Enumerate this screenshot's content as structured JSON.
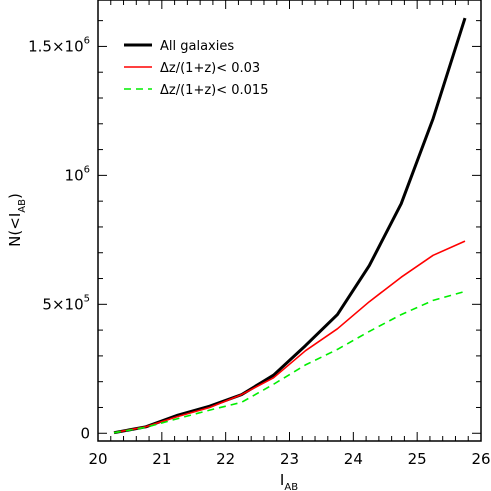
{
  "chart_data": {
    "type": "line",
    "title": "",
    "xlabel": {
      "main": "I",
      "sub": "AB"
    },
    "ylabel": {
      "prefix": "N(<I",
      "sub": "AB",
      "suffix": ")"
    },
    "xlim": [
      20,
      26
    ],
    "ylim": [
      -30000,
      1680000
    ],
    "x_ticks": [
      {
        "value": 20,
        "label": "20"
      },
      {
        "value": 21,
        "label": "21"
      },
      {
        "value": 22,
        "label": "22"
      },
      {
        "value": 23,
        "label": "23"
      },
      {
        "value": 24,
        "label": "24"
      },
      {
        "value": 25,
        "label": "25"
      },
      {
        "value": 26,
        "label": "26"
      }
    ],
    "y_ticks": [
      {
        "value": 0,
        "mant": "0",
        "exp": ""
      },
      {
        "value": 500000,
        "mant": "5×10",
        "exp": "5"
      },
      {
        "value": 1000000,
        "mant": "10",
        "exp": "6"
      },
      {
        "value": 1500000,
        "mant": "1.5×10",
        "exp": "6"
      }
    ],
    "grid": false,
    "legend_position": "top-left",
    "series": [
      {
        "name": "All galaxies",
        "color": "#000000",
        "style": "solid-thick",
        "x": [
          20.25,
          20.75,
          21.25,
          21.75,
          22.25,
          22.75,
          23.25,
          23.75,
          24.25,
          24.75,
          25.25,
          25.75
        ],
        "y": [
          2000,
          25000,
          70000,
          105000,
          150000,
          225000,
          340000,
          460000,
          650000,
          890000,
          1220000,
          1610000
        ]
      },
      {
        "name": "Δz/(1+z)< 0.03",
        "color": "#ff0000",
        "style": "solid",
        "x": [
          20.25,
          20.75,
          21.25,
          21.75,
          22.25,
          22.75,
          23.25,
          23.75,
          24.25,
          24.75,
          25.25,
          25.75
        ],
        "y": [
          2000,
          25000,
          65000,
          100000,
          150000,
          215000,
          320000,
          405000,
          510000,
          605000,
          690000,
          745000
        ]
      },
      {
        "name": "Δz/(1+z)< 0.015",
        "color": "#00ee00",
        "style": "dashed",
        "x": [
          20.25,
          20.75,
          21.25,
          21.75,
          22.25,
          22.75,
          23.25,
          23.75,
          24.25,
          24.75,
          25.25,
          25.75
        ],
        "y": [
          2000,
          23000,
          57000,
          90000,
          120000,
          190000,
          265000,
          325000,
          395000,
          460000,
          515000,
          550000
        ]
      }
    ]
  }
}
